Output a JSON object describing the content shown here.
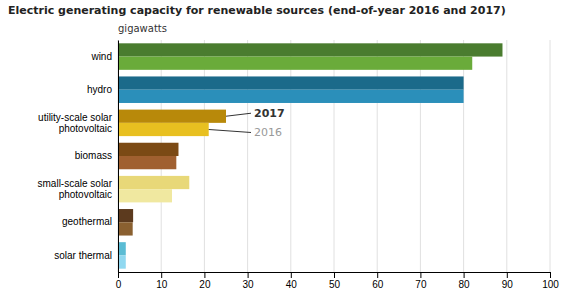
{
  "chart_data": {
    "type": "bar",
    "orientation": "horizontal",
    "title": "Electric generating capacity for renewable sources (end-of-year 2016 and 2017)",
    "xlabel": "gigawatts",
    "categories": [
      "wind",
      "hydro",
      "utility-scale solar\nphotovoltaic",
      "biomass",
      "small-scale solar\nphotovoltaic",
      "geothermal",
      "solar thermal"
    ],
    "series": [
      {
        "name": "2017",
        "colors": [
          "#4a7c2f",
          "#1b6a8a",
          "#b8890a",
          "#7b4a15",
          "#e8d878",
          "#5c3a1e",
          "#5bbcd4"
        ],
        "values": [
          89,
          80,
          25,
          14,
          16.5,
          3.5,
          1.8
        ]
      },
      {
        "name": "2016",
        "colors": [
          "#6aab3a",
          "#2b8fba",
          "#e8c020",
          "#a06030",
          "#f0e8a0",
          "#8a6030",
          "#90d8f0"
        ],
        "values": [
          82,
          80,
          21,
          13.5,
          12.5,
          3.4,
          1.8
        ]
      }
    ],
    "xlim": [
      0,
      100
    ],
    "xticks": [
      0,
      10,
      20,
      30,
      40,
      50,
      60,
      70,
      80,
      90,
      100
    ],
    "grid": true
  }
}
